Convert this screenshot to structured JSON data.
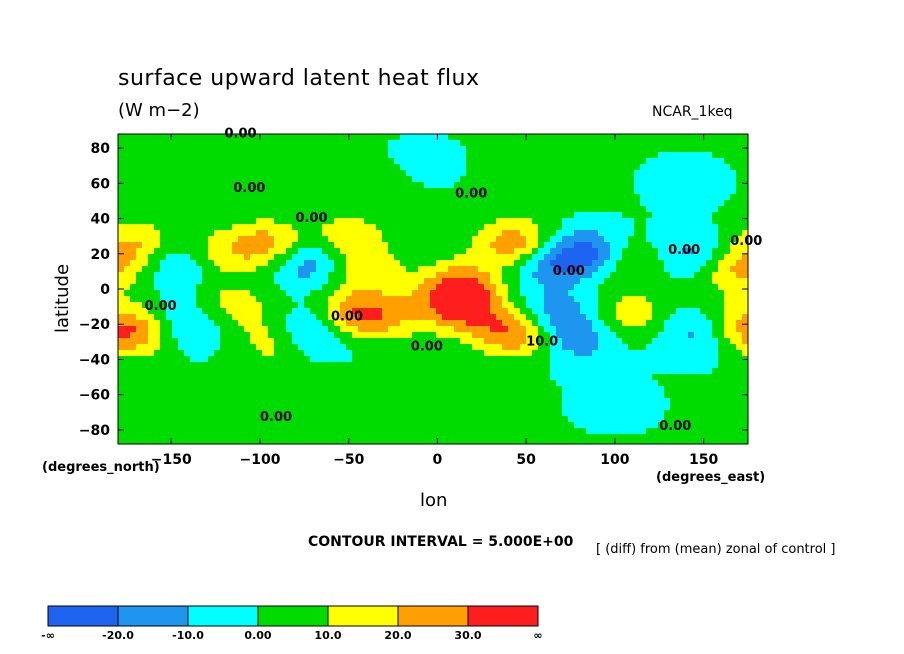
{
  "chart_data": {
    "type": "heatmap",
    "title": "surface upward latent heat flux",
    "subtitle": "(W m−2)",
    "model_label": "NCAR_1keq",
    "xlabel": "lon",
    "ylabel": "latitude",
    "x_unit_label": "(degrees_east)",
    "y_unit_label": "(degrees_north)",
    "xlim": [
      -180,
      175
    ],
    "ylim": [
      -88,
      88
    ],
    "x_ticks": [
      -150,
      -100,
      -50,
      0,
      50,
      100,
      150
    ],
    "y_ticks": [
      80,
      60,
      40,
      20,
      0,
      -20,
      -40,
      -60,
      -80
    ],
    "contour_interval_label": "CONTOUR INTERVAL = 5.000E+00",
    "note": "[ (diff) from (mean) zonal of control ]",
    "contour_labels": [
      "0.00",
      "0.00",
      "0.00",
      "0.00",
      "0.00",
      "0.00",
      "0.00",
      "0.00",
      "0.00",
      "0.00",
      "0.00",
      "0.00",
      "10.0"
    ],
    "colorbar": {
      "labels": [
        "-∞",
        "-20.0",
        "-10.0",
        "0.00",
        "10.0",
        "20.0",
        "30.0",
        "∞"
      ],
      "colors": [
        "#1e64f0",
        "#1e96f0",
        "#00ffff",
        "#00dc00",
        "#ffff00",
        "#ffa000",
        "#ff1e1e"
      ]
    },
    "features": [
      {
        "lon": -170,
        "lat": 25,
        "value": 20
      },
      {
        "lon": -170,
        "lat": -25,
        "value": 25
      },
      {
        "lon": -145,
        "lat": 15,
        "value": -15
      },
      {
        "lon": -140,
        "lat": -20,
        "value": -15
      },
      {
        "lon": -125,
        "lat": 20,
        "value": 15
      },
      {
        "lon": -115,
        "lat": -10,
        "value": 15
      },
      {
        "lon": -95,
        "lat": 25,
        "value": 25
      },
      {
        "lon": -90,
        "lat": -30,
        "value": 15
      },
      {
        "lon": -75,
        "lat": 15,
        "value": -20
      },
      {
        "lon": -70,
        "lat": -25,
        "value": -20
      },
      {
        "lon": -50,
        "lat": 30,
        "value": 15
      },
      {
        "lon": -40,
        "lat": 10,
        "value": 15
      },
      {
        "lon": -45,
        "lat": -15,
        "value": 30
      },
      {
        "lon": -20,
        "lat": -15,
        "value": 10
      },
      {
        "lon": 15,
        "lat": 5,
        "value": 15
      },
      {
        "lon": 10,
        "lat": -5,
        "value": 30
      },
      {
        "lon": 20,
        "lat": -15,
        "value": 15
      },
      {
        "lon": 45,
        "lat": 25,
        "value": 30
      },
      {
        "lon": 45,
        "lat": -25,
        "value": 30
      },
      {
        "lon": 60,
        "lat": 15,
        "value": -20
      },
      {
        "lon": 65,
        "lat": -15,
        "value": -20
      },
      {
        "lon": 85,
        "lat": 20,
        "value": -25
      },
      {
        "lon": 80,
        "lat": -30,
        "value": -15
      },
      {
        "lon": 110,
        "lat": 15,
        "value": 15
      },
      {
        "lon": 110,
        "lat": -15,
        "value": 15
      },
      {
        "lon": 140,
        "lat": 20,
        "value": -15
      },
      {
        "lon": 145,
        "lat": -25,
        "value": -15
      },
      {
        "lon": 170,
        "lat": 10,
        "value": 20
      },
      {
        "lon": 170,
        "lat": -20,
        "value": 15
      },
      {
        "lon": -150,
        "lat": 70,
        "value": 5
      },
      {
        "lon": -30,
        "lat": 60,
        "value": 5
      },
      {
        "lon": 50,
        "lat": 60,
        "value": 5
      },
      {
        "lon": -80,
        "lat": -55,
        "value": 5
      },
      {
        "lon": 100,
        "lat": -65,
        "value": -5
      },
      {
        "lon": -10,
        "lat": 70,
        "value": -5
      },
      {
        "lon": 140,
        "lat": 60,
        "value": -5
      }
    ]
  }
}
